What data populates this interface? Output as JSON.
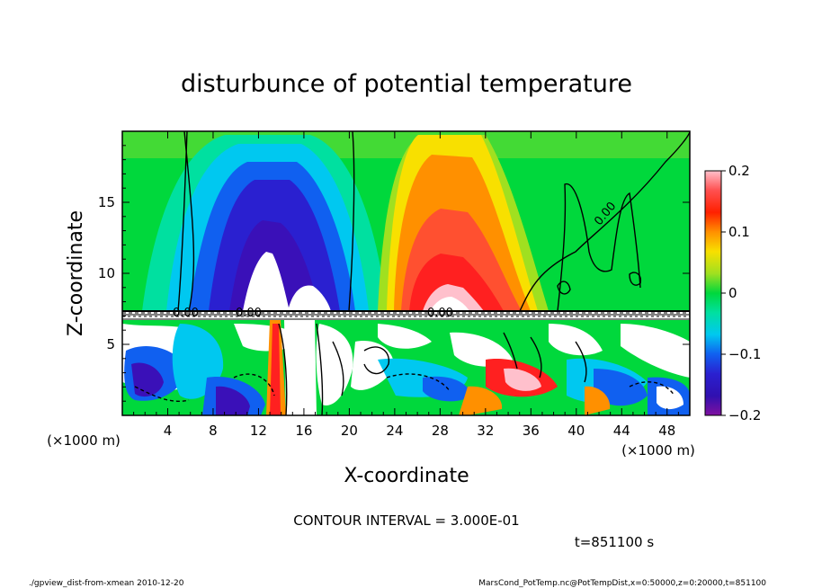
{
  "chart_data": {
    "type": "heatmap",
    "title": "disturbunce of potential temperature",
    "xlabel": "X-coordinate",
    "ylabel": "Z-coordinate",
    "x_unit": "(×1000 m)",
    "y_unit": "(×1000 m)",
    "xlim": [
      0,
      50
    ],
    "ylim": [
      0,
      20
    ],
    "x_ticks": [
      4,
      8,
      12,
      16,
      20,
      24,
      28,
      32,
      36,
      40,
      44,
      48
    ],
    "y_ticks": [
      5,
      10,
      15
    ],
    "colorbar": {
      "range": [
        -0.2,
        0.2
      ],
      "tick_values": [
        0.2,
        0.1,
        0,
        -0.1,
        -0.2
      ],
      "tick_labels": [
        "0.2",
        "0.1",
        "0",
        "−0.1",
        "−0.2"
      ]
    },
    "contour_labels": [
      "0.00",
      "0.00",
      "0.00",
      "0.00"
    ],
    "features": [
      {
        "kind": "cold anomaly",
        "x": 14,
        "z": 12,
        "value": -0.2
      },
      {
        "kind": "warm anomaly",
        "x": 29,
        "z": 11,
        "value": 0.2
      }
    ],
    "contour_interval_text": "CONTOUR INTERVAL = 3.000E-01",
    "time_text": "t=851100 s"
  },
  "footer": {
    "left": "./gpview_dist-from-xmean  2010-12-20",
    "right": "MarsCond_PotTemp.nc@PotTempDist,x=0:50000,z=0:20000,t=851100"
  },
  "colors": {
    "background": "#00d83c",
    "colormap": [
      "#7a10a8",
      "#2a10d0",
      "#1060f0",
      "#00c8f0",
      "#00e0a0",
      "#00d83c",
      "#a0e020",
      "#f8e000",
      "#ff9000",
      "#ff2020",
      "#ff90a0"
    ]
  }
}
